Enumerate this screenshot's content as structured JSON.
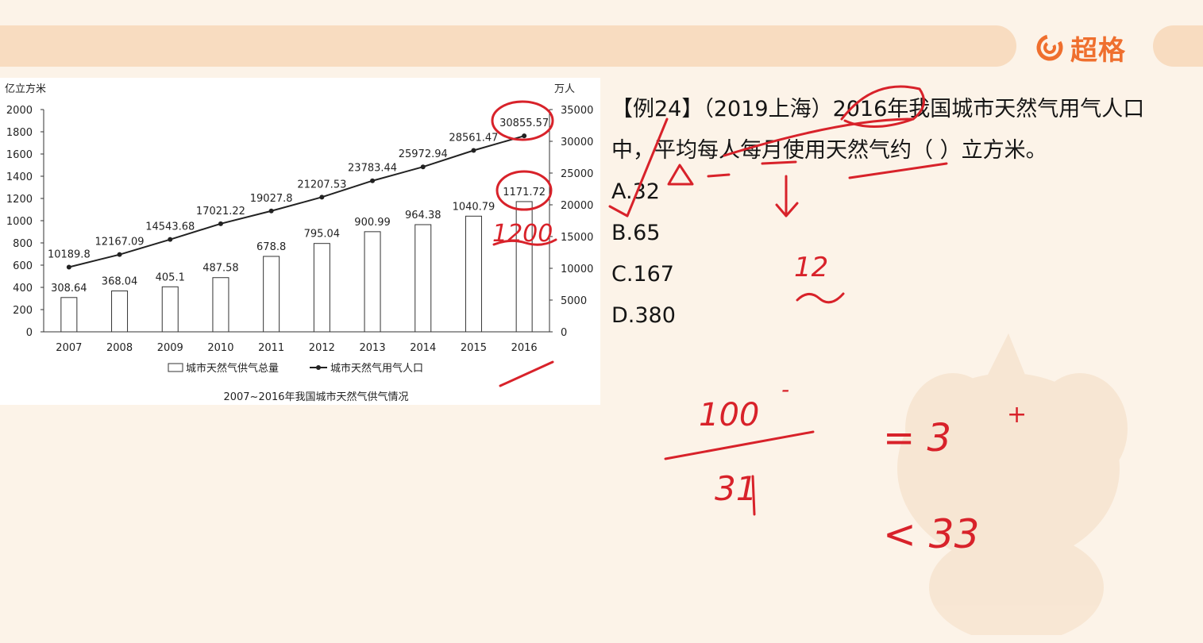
{
  "header": {
    "brand": "超格"
  },
  "chart_data": {
    "type": "bar",
    "title": "2007~2016年我国城市天然气供气情况",
    "left_axis_label": "亿立方米",
    "right_axis_label": "万人",
    "categories": [
      "2007",
      "2008",
      "2009",
      "2010",
      "2011",
      "2012",
      "2013",
      "2014",
      "2015",
      "2016"
    ],
    "ylim_left": [
      0,
      2000
    ],
    "yticks_left": [
      "0",
      "200",
      "400",
      "600",
      "800",
      "1000",
      "1200",
      "1400",
      "1600",
      "1800",
      "2000"
    ],
    "ylim_right": [
      0,
      35000
    ],
    "yticks_right": [
      "0",
      "5000",
      "10000",
      "15000",
      "20000",
      "25000",
      "30000",
      "35000"
    ],
    "series": [
      {
        "name": "城市天然气供气总量",
        "type": "bar",
        "axis": "left",
        "values": [
          308.64,
          368.04,
          405.1,
          487.58,
          678.8,
          795.04,
          900.99,
          964.38,
          1040.79,
          1171.72
        ],
        "labels": [
          "308.64",
          "368.04",
          "405.1",
          "487.58",
          "678.8",
          "795.04",
          "900.99",
          "964.38",
          "1040.79",
          "1171.72"
        ]
      },
      {
        "name": "城市天然气用气人口",
        "type": "line",
        "axis": "right",
        "values": [
          10189.8,
          12167.09,
          14543.68,
          17021.22,
          19027.8,
          21207.53,
          23783.44,
          25972.94,
          28561.47,
          30855.57
        ],
        "labels": [
          "10189.8",
          "12167.09",
          "14543.68",
          "17021.22",
          "19027.8",
          "21207.53",
          "23783.44",
          "25972.94",
          "28561.47",
          "30855.57"
        ]
      }
    ],
    "legend_position": "bottom"
  },
  "question": {
    "line1": "【例24】（2019上海）2016年我国城市天然气用气人口",
    "line2": "中，平均每人每月使用天然气约（  ）立方米。",
    "options": [
      "A.32",
      "B.65",
      "C.167",
      "D.380"
    ]
  },
  "annotations": {
    "ink_color": "#d8222a",
    "notes": [
      "1200",
      "12",
      "100",
      "31",
      "= 3",
      "+",
      "-",
      "< 33"
    ]
  }
}
